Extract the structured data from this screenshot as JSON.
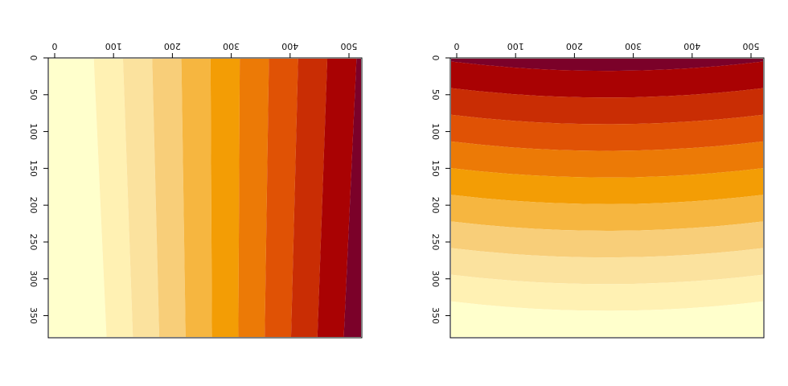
{
  "chart_data": [
    {
      "type": "heatmap",
      "title": "",
      "xlabel": "",
      "ylabel": "",
      "xlim": [
        0,
        500
      ],
      "ylim": [
        0,
        380
      ],
      "x_ticks": [
        "0",
        "100",
        "200",
        "300",
        "400",
        "500"
      ],
      "y_ticks": [
        "0",
        "50",
        "100",
        "150",
        "200",
        "250",
        "300",
        "350"
      ],
      "color_levels": [
        "#FFFFCC",
        "#FFF1B3",
        "#FBE29E",
        "#F8CE79",
        "#F6B640",
        "#F39D05",
        "#EC7A06",
        "#E05205",
        "#C92D04",
        "#A90203",
        "#7B0129"
      ],
      "gradient": "horizontal",
      "grid": false,
      "legend": "none"
    },
    {
      "type": "heatmap",
      "title": "",
      "xlabel": "",
      "ylabel": "",
      "xlim": [
        0,
        500
      ],
      "ylim": [
        0,
        380
      ],
      "x_ticks": [
        "0",
        "100",
        "200",
        "300",
        "400",
        "500"
      ],
      "y_ticks": [
        "0",
        "50",
        "100",
        "150",
        "200",
        "250",
        "300",
        "350"
      ],
      "color_levels": [
        "#FFFFCC",
        "#FFF1B3",
        "#FBE29E",
        "#F8CE79",
        "#F6B640",
        "#F39D05",
        "#EC7A06",
        "#E05205",
        "#C92D04",
        "#A90203",
        "#7B0129"
      ],
      "gradient": "vertical",
      "grid": false,
      "legend": "none"
    }
  ]
}
